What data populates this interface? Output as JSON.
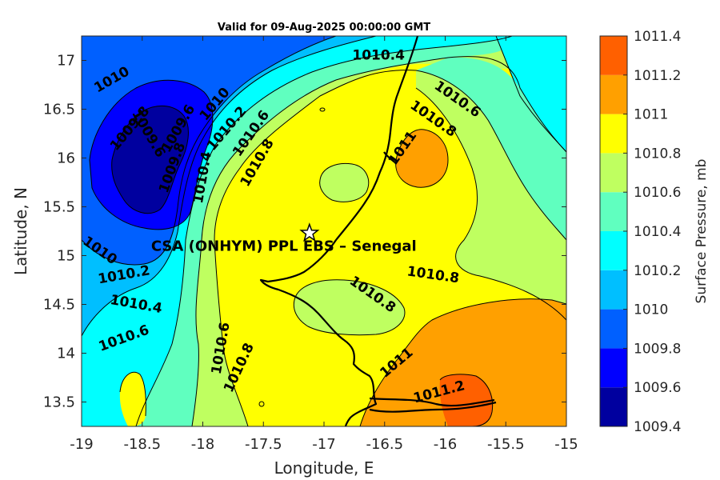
{
  "chart_data": {
    "type": "contour-map",
    "title": "Valid for 09-Aug-2025 00:00:00 GMT",
    "xlabel": "Longitude, E",
    "ylabel": "Latitude, N",
    "xlim": [
      -19,
      -15
    ],
    "ylim": [
      13.25,
      17.25
    ],
    "xticks": [
      -19,
      -18.5,
      -18,
      -17.5,
      -17,
      -16.5,
      -16,
      -15.5,
      -15
    ],
    "xtick_labels": [
      "-19",
      "-18.5",
      "-18",
      "-17.5",
      "-17",
      "-16.5",
      "-16",
      "-15.5",
      "-15"
    ],
    "yticks": [
      13.5,
      14,
      14.5,
      15,
      15.5,
      16,
      16.5,
      17
    ],
    "ytick_labels": [
      "13.5",
      "14",
      "14.5",
      "15",
      "15.5",
      "16",
      "16.5",
      "17"
    ],
    "colorbar": {
      "label": "Surface Pressure, mb",
      "levels": [
        1009.4,
        1009.6,
        1009.8,
        1010,
        1010.2,
        1010.4,
        1010.6,
        1010.8,
        1011,
        1011.2,
        1011.4
      ],
      "tick_labels": [
        "1009.4",
        "1009.6",
        "1009.8",
        "1010",
        "1010.2",
        "1010.4",
        "1010.6",
        "1010.8",
        "1011",
        "1011.2",
        "1011.4"
      ],
      "colors": [
        "#00009f",
        "#0000ff",
        "#0060ff",
        "#00bfff",
        "#00ffff",
        "#60ffbf",
        "#bfff60",
        "#ffff00",
        "#ffa000",
        "#ff6000",
        "#ff0000"
      ]
    },
    "contour_labels": [
      {
        "text": "1010",
        "lon": -18.75,
        "lat": 16.8,
        "rot": -30
      },
      {
        "text": "1009.8",
        "lon": -18.6,
        "lat": 16.3,
        "rot": -50
      },
      {
        "text": "1009.6",
        "lon": -18.45,
        "lat": 16.25,
        "rot": 60
      },
      {
        "text": "1009.6",
        "lon": -18.2,
        "lat": 16.3,
        "rot": -60
      },
      {
        "text": "1009.8",
        "lon": -18.25,
        "lat": 15.9,
        "rot": -70
      },
      {
        "text": "1010",
        "lon": -17.9,
        "lat": 16.55,
        "rot": -50
      },
      {
        "text": "1010.2",
        "lon": -17.8,
        "lat": 16.3,
        "rot": -50
      },
      {
        "text": "1010.6",
        "lon": -17.6,
        "lat": 16.25,
        "rot": -55
      },
      {
        "text": "1010.8",
        "lon": -17.55,
        "lat": 15.95,
        "rot": -60
      },
      {
        "text": "1010.4",
        "lon": -18.0,
        "lat": 15.8,
        "rot": -80
      },
      {
        "text": "1010.4",
        "lon": -16.55,
        "lat": 17.05,
        "rot": 0
      },
      {
        "text": "1010.6",
        "lon": -15.9,
        "lat": 16.6,
        "rot": 35
      },
      {
        "text": "1010.8",
        "lon": -16.1,
        "lat": 16.4,
        "rot": 35
      },
      {
        "text": "1011",
        "lon": -16.35,
        "lat": 16.1,
        "rot": -55
      },
      {
        "text": "1010",
        "lon": -18.85,
        "lat": 15.05,
        "rot": 35
      },
      {
        "text": "1010.2",
        "lon": -18.65,
        "lat": 14.8,
        "rot": -10
      },
      {
        "text": "1010.4",
        "lon": -18.55,
        "lat": 14.5,
        "rot": 10
      },
      {
        "text": "1010.6",
        "lon": -18.65,
        "lat": 14.15,
        "rot": -20
      },
      {
        "text": "1010.6",
        "lon": -17.85,
        "lat": 14.05,
        "rot": -80
      },
      {
        "text": "1010.8",
        "lon": -17.7,
        "lat": 13.85,
        "rot": -65
      },
      {
        "text": "1010.8",
        "lon": -16.6,
        "lat": 14.6,
        "rot": 35
      },
      {
        "text": "1010.8",
        "lon": -16.1,
        "lat": 14.8,
        "rot": 8
      },
      {
        "text": "1011",
        "lon": -16.4,
        "lat": 13.9,
        "rot": -40
      },
      {
        "text": "1011.2",
        "lon": -16.05,
        "lat": 13.6,
        "rot": -15
      }
    ],
    "site": {
      "name": "CSA (ONHYM) PPL EBS  – Senegal",
      "lon": -17.12,
      "lat": 15.23
    }
  }
}
